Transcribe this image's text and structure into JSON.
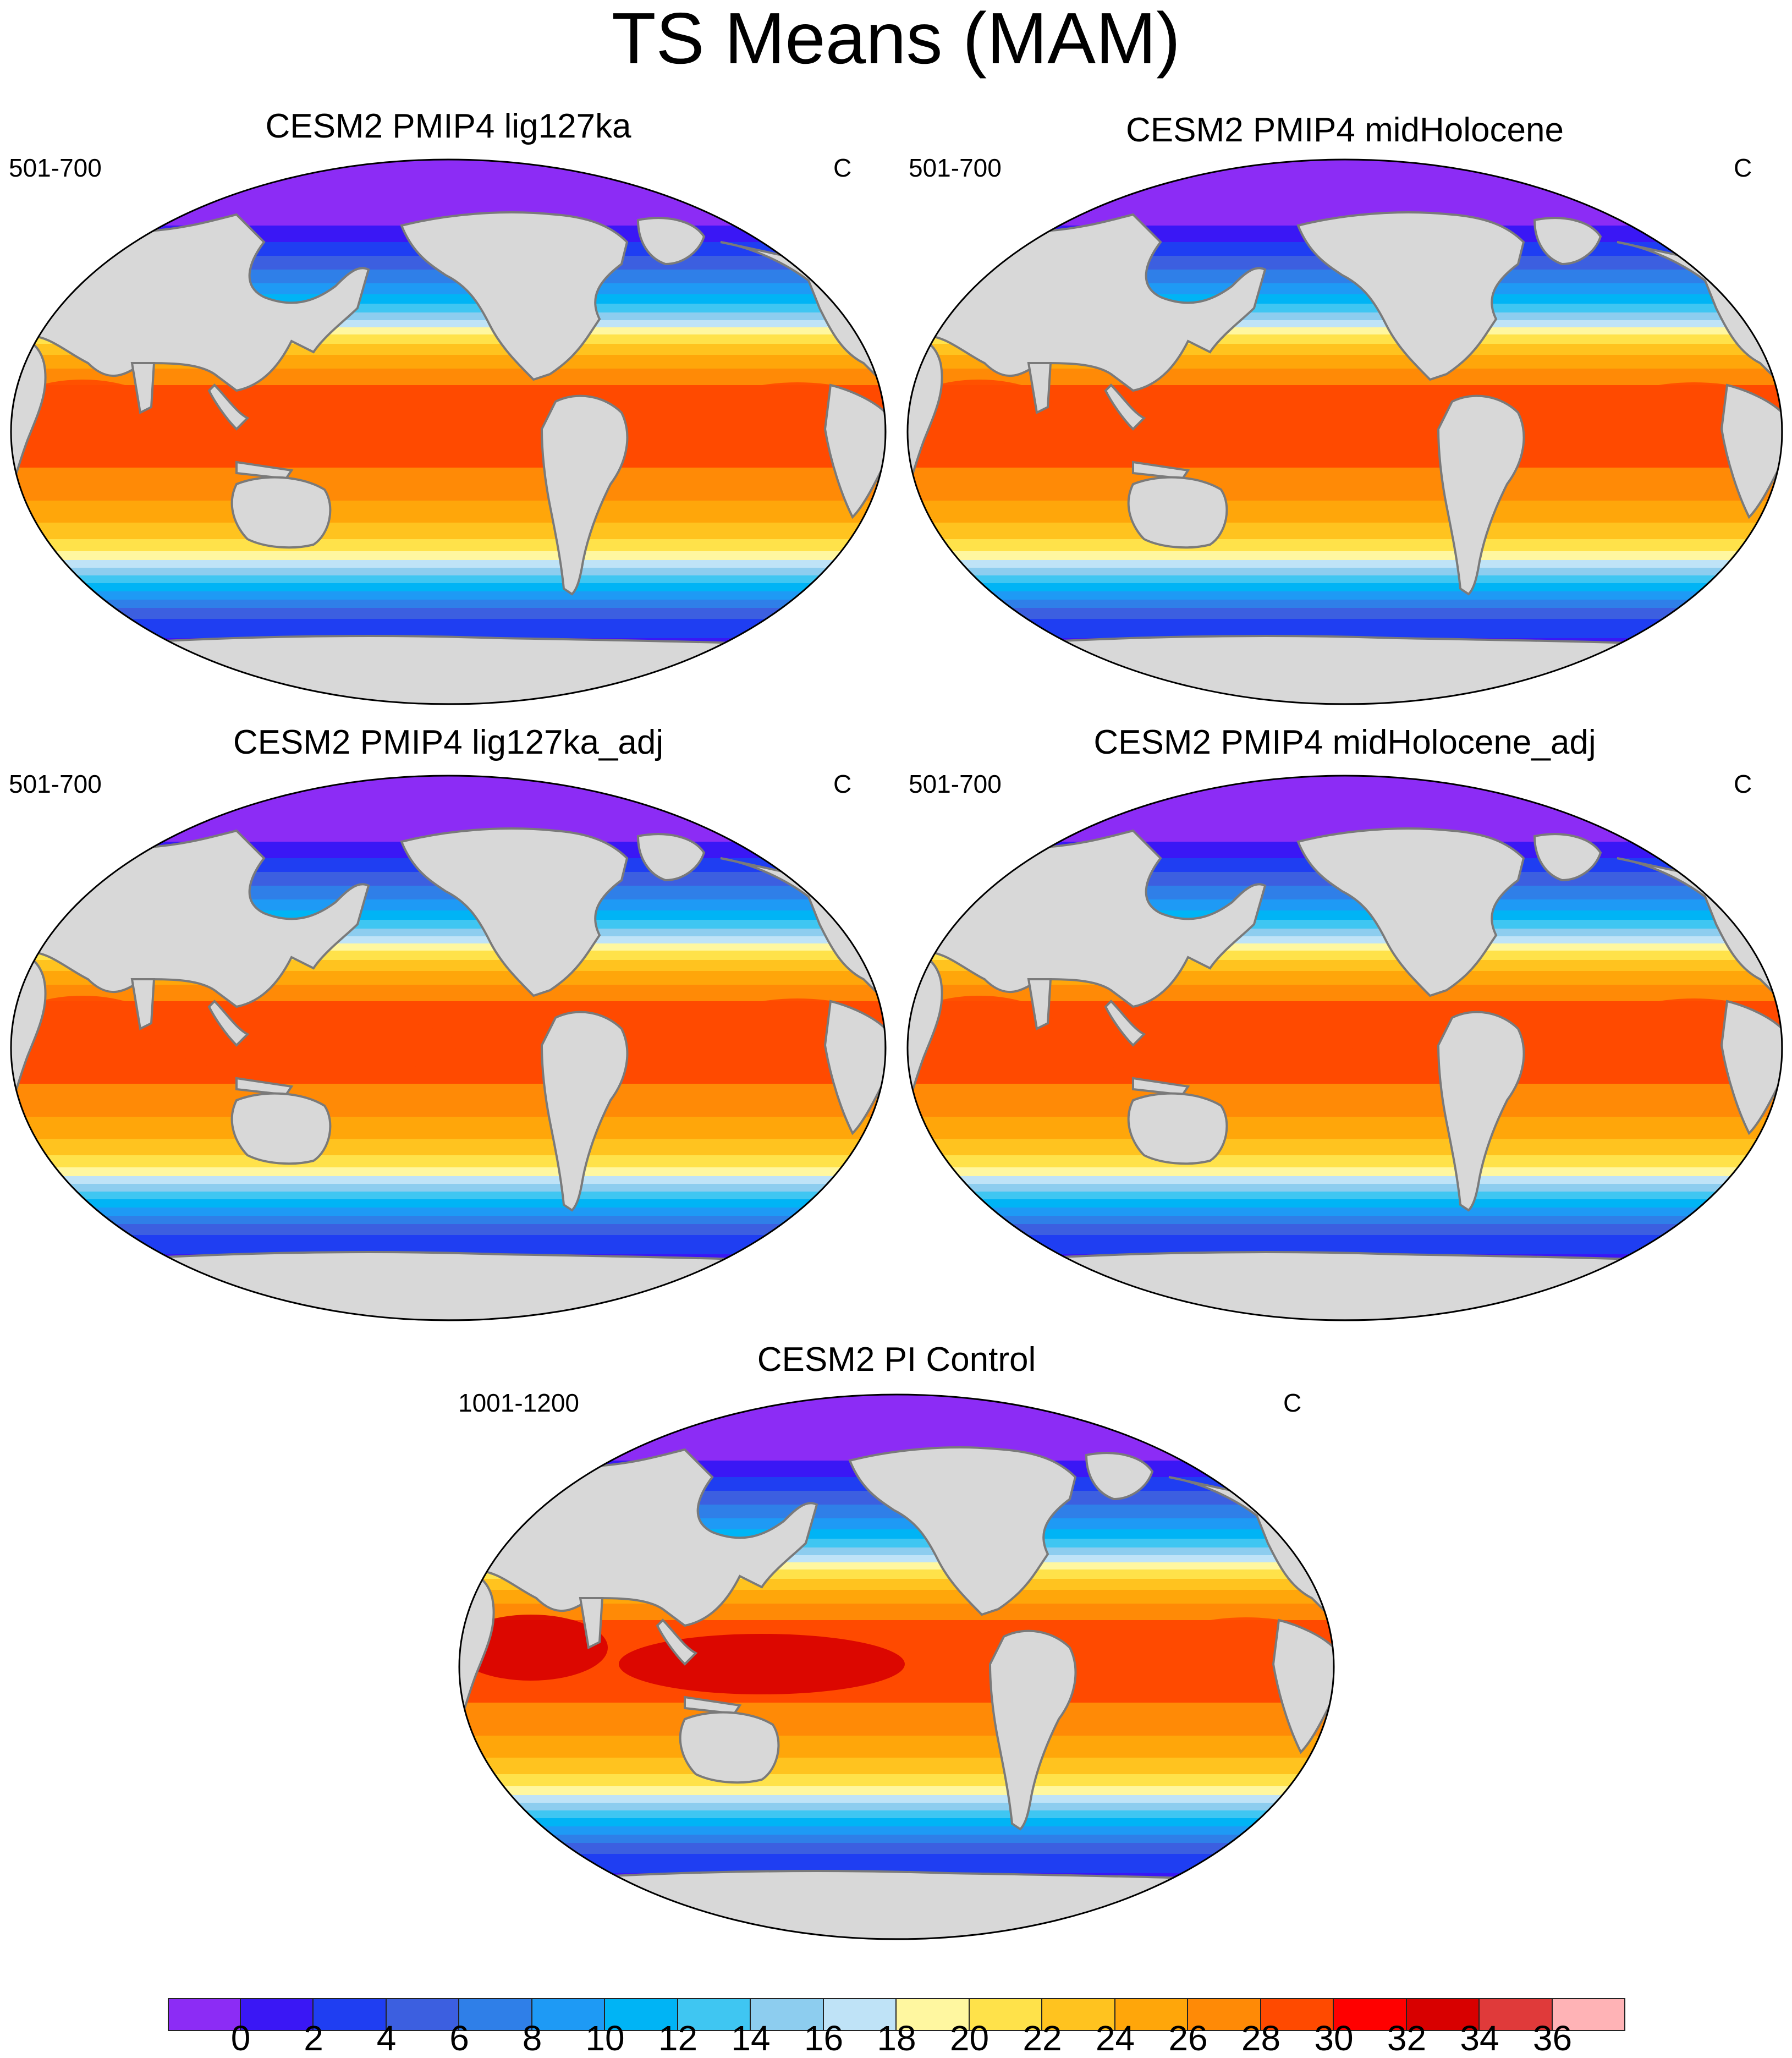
{
  "main_title": "TS Means (MAM)",
  "panels": [
    {
      "title": "CESM2 PMIP4 lig127ka",
      "years": "501-700",
      "units": "C"
    },
    {
      "title": "CESM2 PMIP4 midHolocene",
      "years": "501-700",
      "units": "C"
    },
    {
      "title": "CESM2 PMIP4 lig127ka_adj",
      "years": "501-700",
      "units": "C"
    },
    {
      "title": "CESM2 PMIP4 midHolocene_adj",
      "years": "501-700",
      "units": "C"
    },
    {
      "title": "CESM2 PI Control",
      "years": "1001-1200",
      "units": "C"
    }
  ],
  "colorbar": {
    "labels": [
      "0",
      "2",
      "4",
      "6",
      "8",
      "10",
      "12",
      "14",
      "16",
      "18",
      "20",
      "22",
      "24",
      "26",
      "28",
      "30",
      "32",
      "34",
      "36"
    ],
    "colors": [
      "#8c2cf5",
      "#3a17f5",
      "#1f3ef2",
      "#3c5fe0",
      "#2f7fe8",
      "#1e9af5",
      "#00b4f5",
      "#3fc6f2",
      "#8dcdef",
      "#bfe3f7",
      "#fff7a0",
      "#ffe24a",
      "#ffc31f",
      "#ffa60a",
      "#ff8a06",
      "#ff4a00",
      "#ff0000",
      "#d80000",
      "#e03a3a",
      "#ffb3b6"
    ]
  }
}
